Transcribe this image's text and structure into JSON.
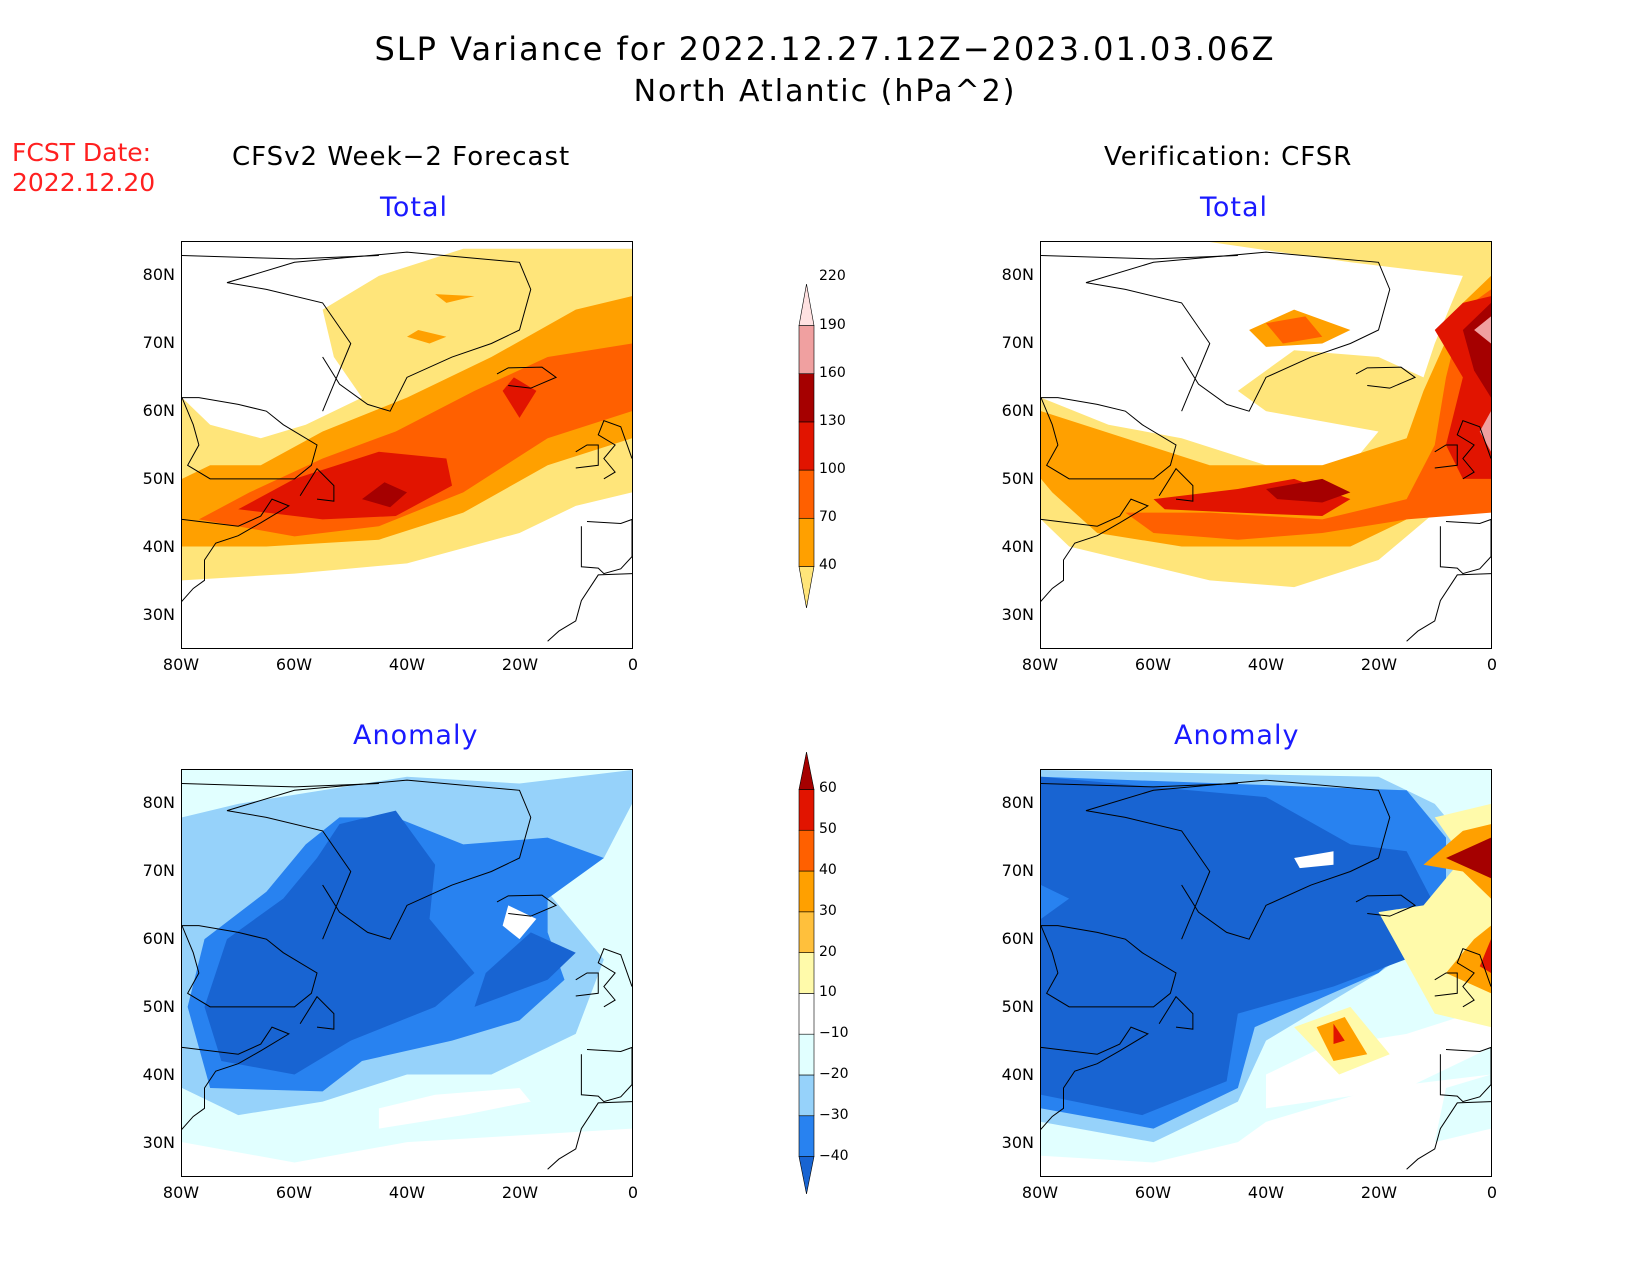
{
  "title": {
    "line1": "SLP Variance for 2022.12.27.12Z−2023.01.03.06Z",
    "line2": "North Atlantic (hPa^2)"
  },
  "fcst_date": {
    "label": "FCST Date:",
    "value": "2022.12.20"
  },
  "columns": {
    "left": "CFSv2 Week−2 Forecast",
    "right": "Verification: CFSR"
  },
  "rows": {
    "top": "Total",
    "bottom": "Anomaly"
  },
  "axes": {
    "lat_labels": [
      "80N",
      "70N",
      "60N",
      "50N",
      "40N",
      "30N"
    ],
    "lat_values": [
      80,
      70,
      60,
      50,
      40,
      30
    ],
    "lon_labels": [
      "80W",
      "60W",
      "40W",
      "20W",
      "0"
    ],
    "lon_values": [
      -80,
      -60,
      -40,
      -20,
      0
    ],
    "lon_range": [
      -80,
      0
    ],
    "lat_range": [
      25,
      85
    ]
  },
  "chart_data": {
    "type": "contour-map",
    "total_colorbar": {
      "labels": [
        "40",
        "70",
        "100",
        "130",
        "160",
        "190",
        "220"
      ],
      "colors": [
        "#ffe57a",
        "#ffa000",
        "#ff6000",
        "#e11400",
        "#a50000",
        "#f0a0a0",
        "#ffe1e1"
      ]
    },
    "anomaly_colorbar": {
      "labels": [
        "−40",
        "−30",
        "−20",
        "−10",
        "10",
        "20",
        "30",
        "40",
        "50",
        "60"
      ],
      "colors": [
        "#1864d2",
        "#2882f0",
        "#96d2fa",
        "#e1ffff",
        "#ffffff",
        "#fffaaa",
        "#ffc03c",
        "#ffa000",
        "#ff6000",
        "#e11400",
        "#a50000"
      ]
    }
  }
}
